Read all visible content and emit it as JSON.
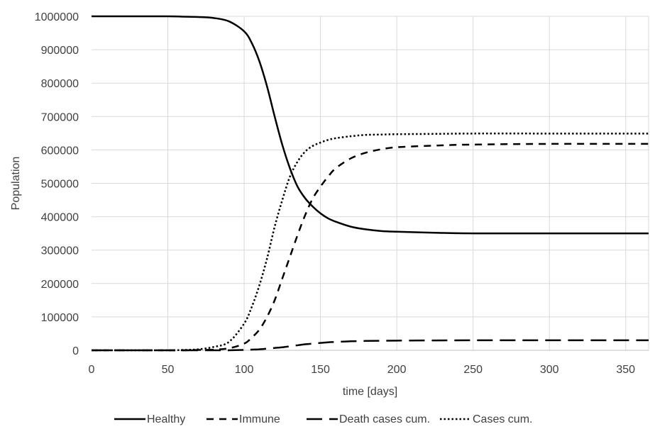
{
  "chart_data": {
    "type": "line",
    "title": "",
    "xlabel": "time [days]",
    "ylabel": "Population",
    "xlim": [
      0,
      365
    ],
    "ylim": [
      0,
      1000000
    ],
    "x_ticks": [
      0,
      50,
      100,
      150,
      200,
      250,
      300,
      350
    ],
    "y_ticks": [
      0,
      100000,
      200000,
      300000,
      400000,
      500000,
      600000,
      700000,
      800000,
      900000,
      1000000
    ],
    "grid": true,
    "legend_position": "bottom",
    "x": [
      0,
      25,
      50,
      60,
      70,
      80,
      90,
      100,
      105,
      110,
      115,
      120,
      125,
      130,
      135,
      140,
      145,
      150,
      155,
      160,
      170,
      180,
      190,
      200,
      225,
      250,
      300,
      365
    ],
    "series": [
      {
        "name": "Healthy",
        "style": "solid",
        "color": "#000000",
        "values": [
          1000000,
          1000000,
          1000000,
          999000,
          998000,
          995000,
          985000,
          955000,
          920000,
          865000,
          790000,
          700000,
          615000,
          545000,
          490000,
          455000,
          430000,
          410000,
          395000,
          385000,
          370000,
          362000,
          357000,
          355000,
          352000,
          350000,
          350000,
          350000
        ]
      },
      {
        "name": "Immune",
        "style": "dashed",
        "color": "#000000",
        "values": [
          0,
          0,
          0,
          0,
          1000,
          2000,
          6000,
          20000,
          38000,
          62000,
          100000,
          150000,
          215000,
          280000,
          345000,
          405000,
          455000,
          490000,
          520000,
          545000,
          575000,
          592000,
          602000,
          608000,
          613000,
          616000,
          618000,
          618000
        ]
      },
      {
        "name": "Death cases cum.",
        "style": "long-dash",
        "color": "#000000",
        "values": [
          0,
          0,
          0,
          0,
          0,
          0,
          0,
          1000,
          2000,
          3000,
          5000,
          7000,
          9000,
          12000,
          15000,
          18000,
          20000,
          22000,
          24000,
          25000,
          27000,
          28000,
          28500,
          29000,
          29500,
          30000,
          30000,
          30000
        ]
      },
      {
        "name": "Cases cum.",
        "style": "dotted",
        "color": "#000000",
        "values": [
          0,
          0,
          0,
          1000,
          3000,
          10000,
          25000,
          80000,
          130000,
          195000,
          275000,
          370000,
          450000,
          520000,
          565000,
          595000,
          612000,
          622000,
          630000,
          635000,
          641000,
          645000,
          646000,
          647000,
          648000,
          649000,
          649000,
          649000
        ]
      }
    ]
  }
}
